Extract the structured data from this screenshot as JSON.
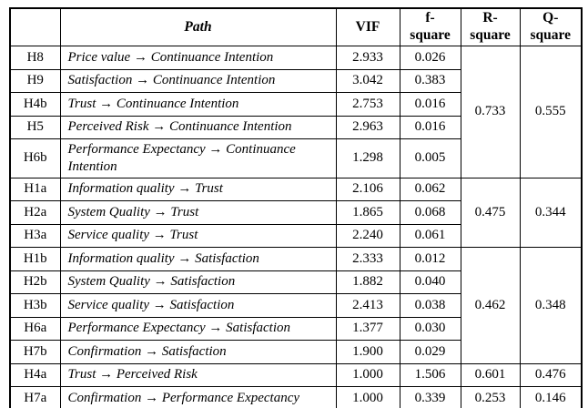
{
  "table": {
    "headers": {
      "hypothesis": "",
      "path": "Path",
      "vif": "VIF",
      "f_square": "f-\nsquare",
      "r_square": "R-\nsquare",
      "q_square": "Q-\nsquare"
    },
    "groups": [
      {
        "r_square": "0.733",
        "q_square": "0.555",
        "rows": [
          {
            "id": "H8",
            "path": "Price value → Continuance Intention",
            "vif": "2.933",
            "f_square": "0.026"
          },
          {
            "id": "H9",
            "path": "Satisfaction → Continuance Intention",
            "vif": "3.042",
            "f_square": "0.383"
          },
          {
            "id": "H4b",
            "path": "Trust → Continuance Intention",
            "vif": "2.753",
            "f_square": "0.016"
          },
          {
            "id": "H5",
            "path": "Perceived Risk → Continuance Intention",
            "vif": "2.963",
            "f_square": "0.016"
          },
          {
            "id": "H6b",
            "path": "Performance Expectancy → Continuance Intention",
            "vif": "1.298",
            "f_square": "0.005"
          }
        ]
      },
      {
        "r_square": "0.475",
        "q_square": "0.344",
        "rows": [
          {
            "id": "H1a",
            "path": "Information quality → Trust",
            "vif": "2.106",
            "f_square": "0.062"
          },
          {
            "id": "H2a",
            "path": "System Quality → Trust",
            "vif": "1.865",
            "f_square": "0.068"
          },
          {
            "id": "H3a",
            "path": "Service quality → Trust",
            "vif": "2.240",
            "f_square": "0.061"
          }
        ]
      },
      {
        "r_square": "0.462",
        "q_square": "0.348",
        "rows": [
          {
            "id": "H1b",
            "path": "Information quality → Satisfaction",
            "vif": "2.333",
            "f_square": "0.012"
          },
          {
            "id": "H2b",
            "path": "System Quality → Satisfaction",
            "vif": "1.882",
            "f_square": "0.040"
          },
          {
            "id": "H3b",
            "path": "Service quality → Satisfaction",
            "vif": "2.413",
            "f_square": "0.038"
          },
          {
            "id": "H6a",
            "path": "Performance Expectancy → Satisfaction",
            "vif": "1.377",
            "f_square": "0.030"
          },
          {
            "id": "H7b",
            "path": "Confirmation → Satisfaction",
            "vif": "1.900",
            "f_square": "0.029"
          }
        ]
      },
      {
        "r_square": "0.601",
        "q_square": "0.476",
        "rows": [
          {
            "id": "H4a",
            "path": "Trust → Perceived Risk",
            "vif": "1.000",
            "f_square": "1.506"
          }
        ]
      },
      {
        "r_square": "0.253",
        "q_square": "0.146",
        "rows": [
          {
            "id": "H7a",
            "path": "Confirmation → Performance Expectancy",
            "vif": "1.000",
            "f_square": "0.339"
          }
        ]
      }
    ],
    "colors": {
      "border": "#000000",
      "text": "#000000",
      "background": "#ffffff"
    }
  }
}
